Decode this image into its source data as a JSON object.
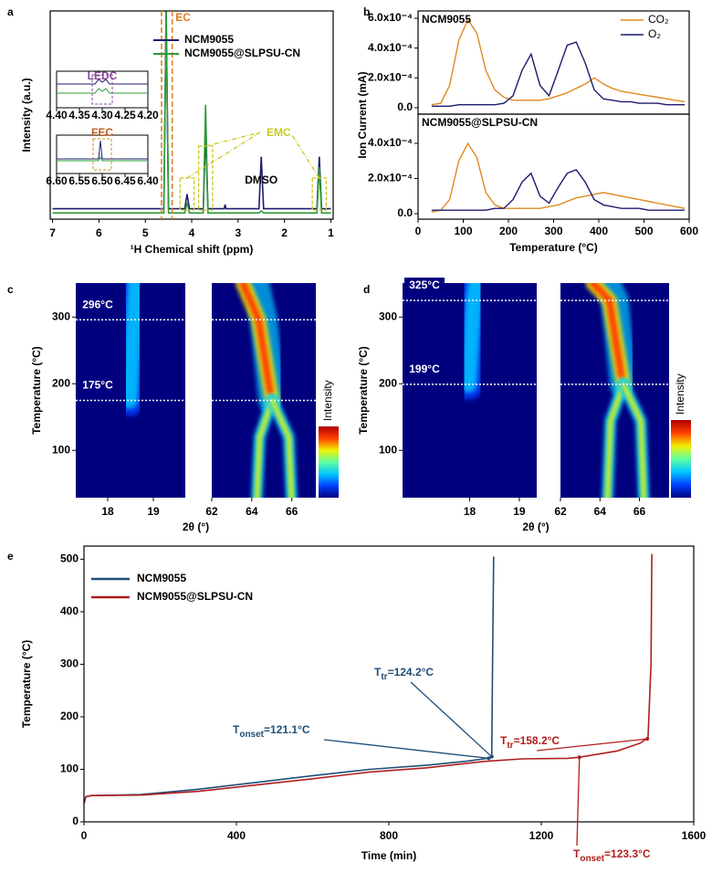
{
  "chart_data": [
    {
      "panel": "a",
      "type": "line",
      "xlabel": "¹H Chemical shift (ppm)",
      "ylabel": "Intensity (a.u.)",
      "xlim": [
        7.05,
        0.95
      ],
      "xticks": [
        7,
        6,
        5,
        4,
        3,
        2,
        1
      ],
      "ylim": [
        0,
        1
      ],
      "series": [
        {
          "name": "NCM9055",
          "color": "#1c1c6e",
          "x": [
            7,
            4.6,
            4.55,
            4.5,
            4.15,
            4.1,
            4.05,
            3.75,
            3.7,
            3.65,
            3.3,
            3.28,
            3.26,
            2.55,
            2.5,
            2.45,
            1.3,
            1.25,
            1.2,
            1
          ],
          "values": [
            0.05,
            0.05,
            1.0,
            0.05,
            0.05,
            0.12,
            0.05,
            0.05,
            0.42,
            0.05,
            0.05,
            0.07,
            0.05,
            0.05,
            0.3,
            0.05,
            0.05,
            0.3,
            0.05,
            0.05
          ]
        },
        {
          "name": "NCM9055@SLPSU-CN",
          "color": "#2e9b3a",
          "x": [
            7,
            4.6,
            4.55,
            4.5,
            4.15,
            4.1,
            4.05,
            3.75,
            3.7,
            3.65,
            3.3,
            3.28,
            3.26,
            2.55,
            2.5,
            2.45,
            1.3,
            1.25,
            1.2,
            1
          ],
          "values": [
            0.03,
            0.03,
            1.0,
            0.03,
            0.03,
            0.08,
            0.03,
            0.03,
            0.55,
            0.03,
            0.03,
            0.03,
            0.03,
            0.03,
            0.04,
            0.03,
            0.03,
            0.25,
            0.03,
            0.03
          ]
        }
      ],
      "annotations": [
        {
          "text": "EC",
          "color": "#e07a1a"
        },
        {
          "text": "EMC",
          "color": "#c8c81e"
        },
        {
          "text": "DMSO",
          "color": "#000000"
        }
      ],
      "insets": [
        {
          "label": "LEDC",
          "xlim": [
            4.4,
            4.2
          ],
          "xticks": [
            {
              "value": 4.4,
              "label": "4.40"
            },
            4.35,
            {
              "value": 4.3,
              "label": "4.30"
            },
            4.25,
            {
              "value": 4.2,
              "label": "4.20"
            }
          ]
        },
        {
          "label": "FEC",
          "xlim": [
            6.6,
            6.4
          ],
          "xticks": [
            {
              "value": 6.6,
              "label": "6.60"
            },
            6.55,
            {
              "value": 6.5,
              "label": "6.50"
            },
            6.45,
            {
              "value": 6.4,
              "label": "6.40"
            }
          ]
        }
      ]
    },
    {
      "panel": "b",
      "type": "line",
      "xlabel": "Temperature (°C)",
      "ylabel": "Ion Current (mA)",
      "xlim": [
        0,
        600
      ],
      "xticks": [
        0,
        100,
        200,
        300,
        400,
        500,
        600
      ],
      "legend": {
        "corner": "upper right",
        "items": [
          {
            "name": "CO₂",
            "color": "#e08a1e"
          },
          {
            "name": "O₂",
            "color": "#1c1c6e"
          }
        ]
      },
      "x": [
        30,
        50,
        70,
        90,
        110,
        130,
        150,
        170,
        190,
        210,
        230,
        250,
        270,
        290,
        310,
        330,
        350,
        370,
        390,
        410,
        430,
        450,
        470,
        490,
        510,
        530,
        550,
        570,
        590
      ],
      "subplots": [
        {
          "title": "NCM9055",
          "ylim": [
            -4.3e-05,
            0.000649
          ],
          "yticks": [
            {
              "value": 0,
              "label": "0.0"
            },
            {
              "value": 0.0002,
              "label": "2.0x10⁻⁴"
            },
            {
              "value": 0.0004,
              "label": "4.0x10⁻⁴"
            },
            {
              "value": 0.0006,
              "label": "6.0x10⁻⁴"
            }
          ],
          "series": [
            {
              "values": [
                2e-05,
                3e-05,
                0.00015,
                0.00045,
                0.00059,
                0.0005,
                0.00025,
                0.00012,
                7e-05,
                5e-05,
                5e-05,
                5e-05,
                5e-05,
                6e-05,
                8e-05,
                0.0001,
                0.00013,
                0.00016,
                0.0002,
                0.00016,
                0.00013,
                0.00011,
                0.0001,
                9e-05,
                8e-05,
                7e-05,
                6e-05,
                5e-05,
                4e-05
              ]
            },
            {
              "values": [
                1e-05,
                1e-05,
                1e-05,
                2e-05,
                2e-05,
                2e-05,
                2e-05,
                2e-05,
                3e-05,
                8e-05,
                0.00025,
                0.00036,
                0.00015,
                8e-05,
                0.00025,
                0.00042,
                0.00044,
                0.0003,
                0.00012,
                6e-05,
                5e-05,
                4e-05,
                4e-05,
                3e-05,
                3e-05,
                3e-05,
                2e-05,
                2e-05,
                2e-05
              ]
            }
          ]
        },
        {
          "title": "NCM9055@SLPSU-CN",
          "ylim": [
            -3.1e-05,
            0.000566
          ],
          "yticks": [
            {
              "value": 0,
              "label": "0.0"
            },
            {
              "value": 0.0002,
              "label": "2.0x10⁻⁴"
            },
            {
              "value": 0.0004,
              "label": "4.0x10⁻⁴"
            }
          ],
          "series": [
            {
              "values": [
                1e-05,
                2e-05,
                8e-05,
                0.0003,
                0.0004,
                0.00032,
                0.00012,
                5e-05,
                3e-05,
                3e-05,
                3e-05,
                3e-05,
                3e-05,
                4e-05,
                5e-05,
                7e-05,
                9e-05,
                0.0001,
                0.00011,
                0.00012,
                0.00011,
                0.0001,
                9e-05,
                8e-05,
                7e-05,
                6e-05,
                5e-05,
                4e-05,
                3e-05
              ]
            },
            {
              "values": [
                2e-05,
                2e-05,
                2e-05,
                2e-05,
                2e-05,
                2e-05,
                2e-05,
                3e-05,
                3e-05,
                8e-05,
                0.00018,
                0.00023,
                0.0001,
                6e-05,
                0.00015,
                0.00023,
                0.00025,
                0.00018,
                8e-05,
                5e-05,
                4e-05,
                3e-05,
                3e-05,
                3e-05,
                2e-05,
                2e-05,
                2e-05,
                2e-05,
                2e-05
              ]
            }
          ]
        }
      ]
    },
    {
      "panel": "c",
      "type": "heatmap",
      "ylabel": "Temperature (°C)",
      "xlabel": "2θ (°)",
      "ylim": [
        29,
        351
      ],
      "yticks": [
        100,
        200,
        300
      ],
      "subplots": [
        {
          "xlim": [
            17.3,
            19.7
          ],
          "xticks": [
            18,
            19
          ]
        },
        {
          "xlim": [
            62,
            67.2
          ],
          "xticks": [
            62,
            64,
            66
          ]
        }
      ],
      "transitions": [
        {
          "value": 296,
          "label": "296°C"
        },
        {
          "value": 175,
          "label": "175°C"
        }
      ],
      "colorbar_label": "Intensity",
      "colormap": [
        "#00007f",
        "#0040ff",
        "#00c8ff",
        "#60ffa0",
        "#f0f000",
        "#ff4000",
        "#b00000"
      ]
    },
    {
      "panel": "d",
      "type": "heatmap",
      "ylabel": "Temperature (°C)",
      "xlabel": "2θ (°)",
      "ylim": [
        29,
        351
      ],
      "yticks": [
        100,
        200,
        300
      ],
      "subplots": [
        {
          "xlim": [
            16.65,
            19.35
          ],
          "xticks": [
            18,
            19
          ]
        },
        {
          "xlim": [
            62,
            67.5
          ],
          "xticks": [
            62,
            64,
            66
          ]
        }
      ],
      "transitions": [
        {
          "value": 325,
          "label": "325°C"
        },
        {
          "value": 199,
          "label": "199°C"
        }
      ],
      "colorbar_label": "Intensity",
      "colormap": [
        "#00007f",
        "#0040ff",
        "#00c8ff",
        "#60ffa0",
        "#f0f000",
        "#ff4000",
        "#b00000"
      ]
    },
    {
      "panel": "e",
      "type": "line",
      "xlabel": "Time (min)",
      "ylabel": "Temperature (°C)",
      "xlim": [
        0,
        1600
      ],
      "xticks": [
        0,
        400,
        800,
        1200,
        1600
      ],
      "ylim": [
        0,
        525
      ],
      "yticks": [
        0,
        100,
        200,
        300,
        400,
        500
      ],
      "legend": "upper left",
      "series": [
        {
          "name": "NCM9055",
          "color": "#1f4e79",
          "x": [
            0,
            5,
            20,
            150,
            300,
            450,
            600,
            750,
            900,
            1000,
            1060,
            1070,
            1072,
            1075
          ],
          "values": [
            35,
            48,
            50,
            52,
            62,
            75,
            88,
            100,
            108,
            115,
            121,
            124,
            300,
            505
          ]
        },
        {
          "name": "NCM9055@SLPSU-CN",
          "color": "#b01e1e",
          "x": [
            0,
            5,
            20,
            150,
            300,
            450,
            600,
            750,
            900,
            1050,
            1150,
            1270,
            1300,
            1400,
            1460,
            1480,
            1488,
            1490
          ],
          "values": [
            35,
            48,
            50,
            51,
            58,
            70,
            82,
            95,
            103,
            115,
            120,
            121,
            123,
            135,
            150,
            160,
            300,
            510
          ]
        }
      ],
      "annotations": [
        {
          "parts": [
            "T",
            "tr",
            "=124.2°C"
          ],
          "color": "#1f4e79"
        },
        {
          "parts": [
            "T",
            "onset",
            "=121.1°C"
          ],
          "color": "#1f4e79"
        },
        {
          "parts": [
            "T",
            "tr",
            "=158.2°C"
          ],
          "color": "#b01e1e"
        },
        {
          "parts": [
            "T",
            "onset",
            "=123.3°C"
          ],
          "color": "#b01e1e"
        }
      ]
    }
  ]
}
